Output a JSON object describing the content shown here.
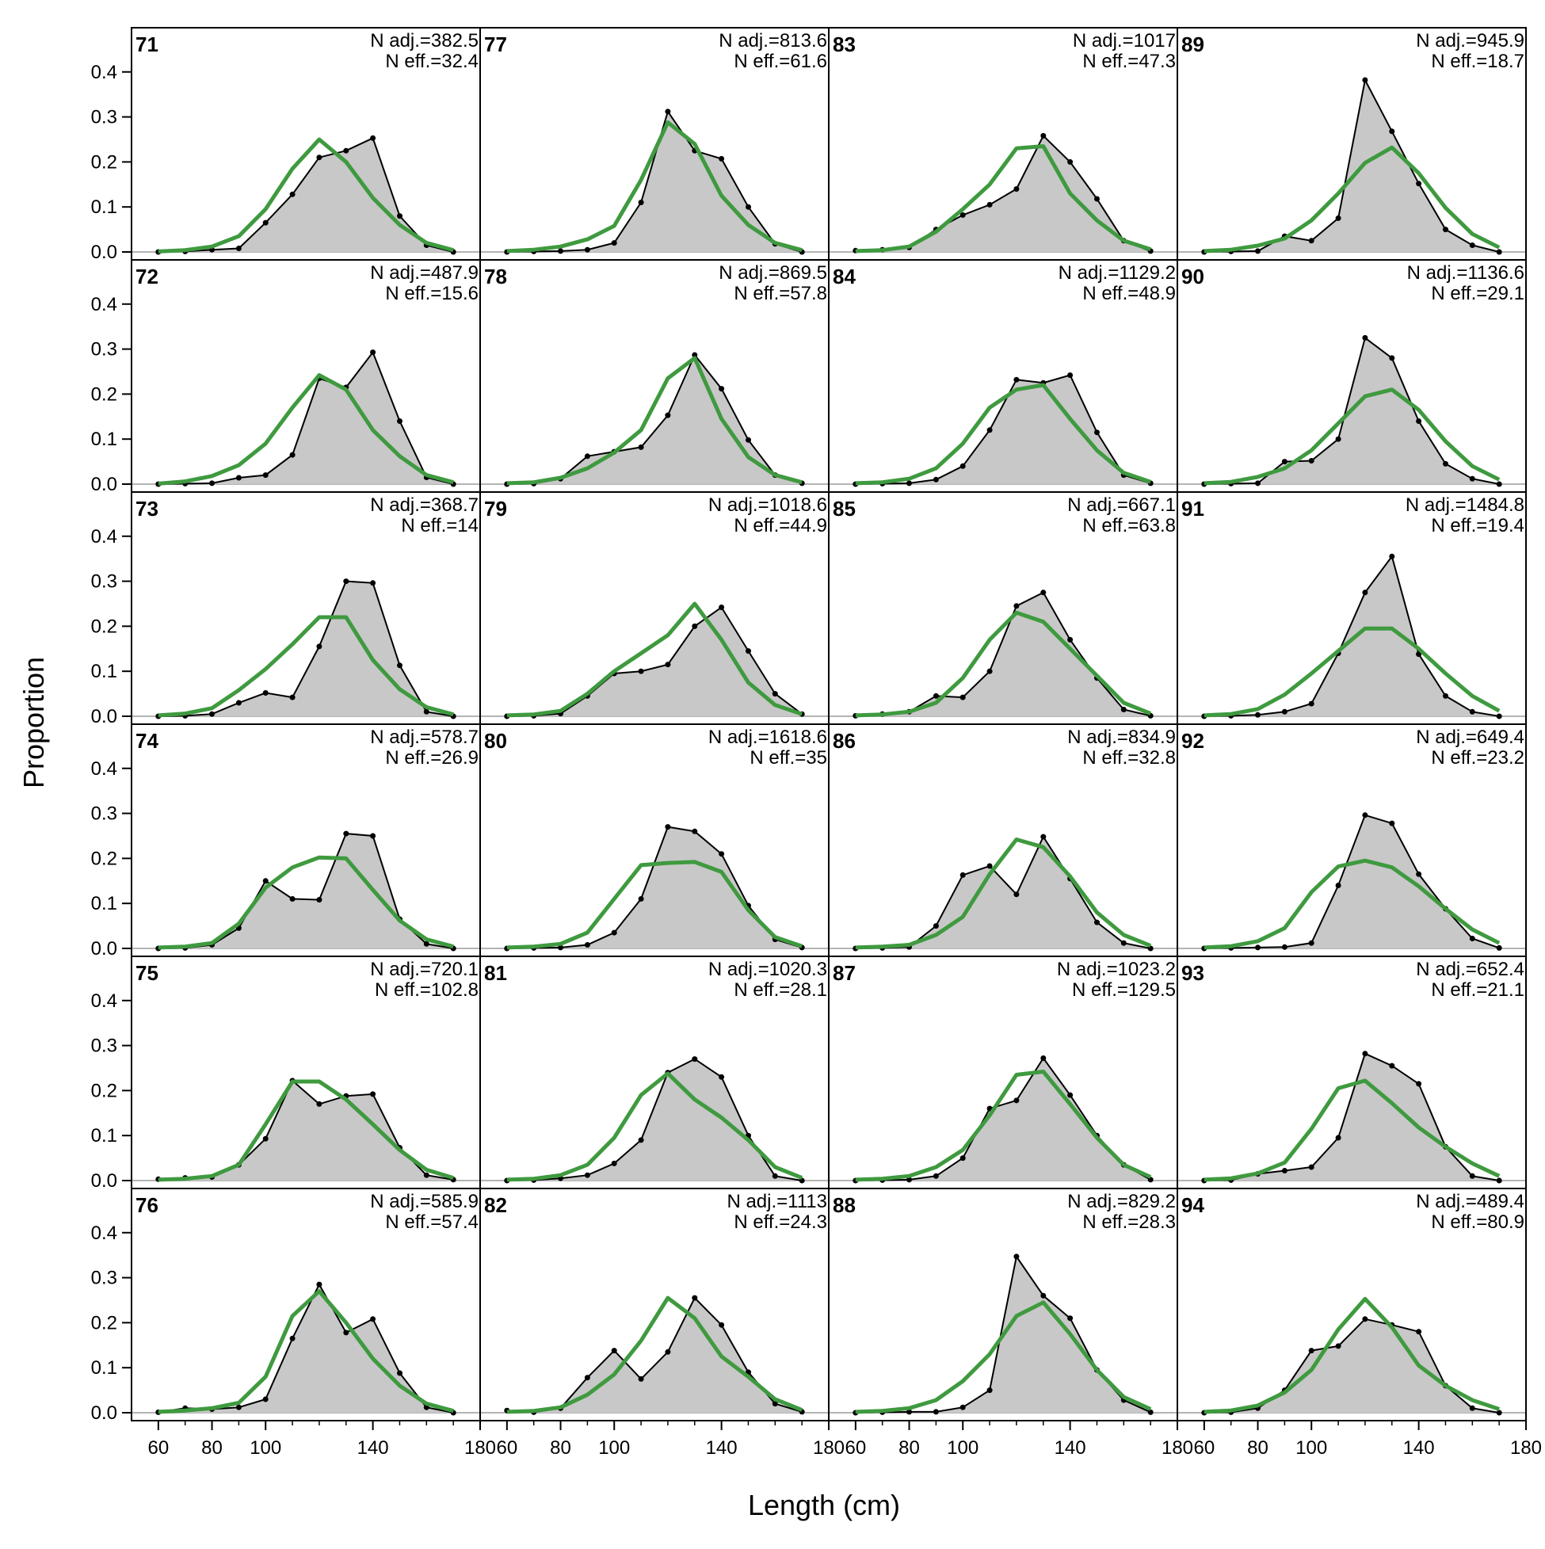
{
  "figure": {
    "xlabel": "Length (cm)",
    "ylabel": "Proportion"
  },
  "chart_data": {
    "type": "line",
    "layout": {
      "rows": 6,
      "cols": 4,
      "order": "column-major"
    },
    "xlabel": "Length (cm)",
    "ylabel": "Proportion",
    "xlim": [
      50,
      180
    ],
    "ylim": [
      0,
      0.47
    ],
    "x_ticks": [
      60,
      80,
      100,
      140,
      180
    ],
    "x_tick_labels": [
      "60",
      "80",
      "100",
      "140",
      "180"
    ],
    "y_ticks": [
      0,
      0.1,
      0.2,
      0.3,
      0.4
    ],
    "y_tick_labels": [
      "0.0",
      "0.1",
      "0.2",
      "0.3",
      "0.4"
    ],
    "x": [
      60,
      70,
      80,
      90,
      100,
      110,
      120,
      130,
      140,
      150,
      160,
      170
    ],
    "colors": {
      "observed_fill": "#c8c8c8",
      "observed_line": "#000000",
      "expected_line": "#3f9a3f",
      "zero_line": "#b4b4b4"
    },
    "panels": [
      {
        "label": "71",
        "n_adj": "N adj.=382.5",
        "n_eff": "N eff.=32.4",
        "observed": [
          0,
          0.001,
          0.005,
          0.008,
          0.065,
          0.128,
          0.21,
          0.225,
          0.253,
          0.08,
          0.015,
          0
        ],
        "expected": [
          0.001,
          0.004,
          0.012,
          0.035,
          0.095,
          0.185,
          0.25,
          0.2,
          0.12,
          0.06,
          0.02,
          0.004
        ]
      },
      {
        "label": "72",
        "n_adj": "N adj.=487.9",
        "n_eff": "N eff.=15.6",
        "observed": [
          0,
          0.001,
          0.002,
          0.014,
          0.02,
          0.065,
          0.235,
          0.215,
          0.293,
          0.14,
          0.015,
          0
        ],
        "expected": [
          0.001,
          0.006,
          0.018,
          0.042,
          0.09,
          0.17,
          0.242,
          0.21,
          0.12,
          0.062,
          0.02,
          0.004
        ]
      },
      {
        "label": "73",
        "n_adj": "N adj.=368.7",
        "n_eff": "N eff.=14",
        "observed": [
          0,
          0.001,
          0.005,
          0.03,
          0.052,
          0.042,
          0.155,
          0.3,
          0.296,
          0.113,
          0.01,
          0
        ],
        "expected": [
          0.002,
          0.006,
          0.018,
          0.058,
          0.105,
          0.16,
          0.22,
          0.22,
          0.125,
          0.06,
          0.02,
          0.004
        ]
      },
      {
        "label": "74",
        "n_adj": "N adj.=578.7",
        "n_eff": "N eff.=26.9",
        "observed": [
          0,
          0.001,
          0.008,
          0.045,
          0.15,
          0.11,
          0.108,
          0.255,
          0.25,
          0.065,
          0.01,
          0
        ],
        "expected": [
          0.002,
          0.004,
          0.012,
          0.055,
          0.135,
          0.18,
          0.202,
          0.2,
          0.13,
          0.062,
          0.02,
          0.004
        ]
      },
      {
        "label": "75",
        "n_adj": "N adj.=720.1",
        "n_eff": "N eff.=102.8",
        "observed": [
          0.003,
          0.006,
          0.008,
          0.035,
          0.093,
          0.222,
          0.17,
          0.188,
          0.192,
          0.073,
          0.012,
          0.002
        ],
        "expected": [
          0.002,
          0.004,
          0.01,
          0.035,
          0.125,
          0.22,
          0.22,
          0.18,
          0.125,
          0.068,
          0.024,
          0.006
        ]
      },
      {
        "label": "76",
        "n_adj": "N adj.=585.9",
        "n_eff": "N eff.=57.4",
        "observed": [
          0.001,
          0.01,
          0.008,
          0.012,
          0.03,
          0.165,
          0.285,
          0.178,
          0.208,
          0.088,
          0.012,
          0
        ],
        "expected": [
          0.002,
          0.005,
          0.01,
          0.022,
          0.08,
          0.215,
          0.27,
          0.2,
          0.12,
          0.06,
          0.02,
          0.004
        ]
      },
      {
        "label": "77",
        "n_adj": "N adj.=813.6",
        "n_eff": "N eff.=61.6",
        "observed": [
          0,
          0.001,
          0.002,
          0.005,
          0.02,
          0.11,
          0.312,
          0.225,
          0.207,
          0.1,
          0.018,
          0
        ],
        "expected": [
          0.002,
          0.005,
          0.012,
          0.028,
          0.058,
          0.16,
          0.288,
          0.24,
          0.125,
          0.06,
          0.02,
          0.004
        ]
      },
      {
        "label": "78",
        "n_adj": "N adj.=869.5",
        "n_eff": "N eff.=57.8",
        "observed": [
          0,
          0.001,
          0.012,
          0.062,
          0.072,
          0.082,
          0.153,
          0.287,
          0.212,
          0.098,
          0.02,
          0.002
        ],
        "expected": [
          0.002,
          0.004,
          0.014,
          0.035,
          0.07,
          0.12,
          0.235,
          0.28,
          0.145,
          0.06,
          0.02,
          0.004
        ]
      },
      {
        "label": "79",
        "n_adj": "N adj.=1018.6",
        "n_eff": "N eff.=44.9",
        "observed": [
          0,
          0.001,
          0.006,
          0.045,
          0.095,
          0.1,
          0.115,
          0.2,
          0.242,
          0.145,
          0.05,
          0.005
        ],
        "expected": [
          0.002,
          0.004,
          0.012,
          0.05,
          0.1,
          0.14,
          0.18,
          0.25,
          0.17,
          0.075,
          0.025,
          0.005
        ]
      },
      {
        "label": "80",
        "n_adj": "N adj.=1618.6",
        "n_eff": "N eff.=35",
        "observed": [
          0,
          0.001,
          0.002,
          0.008,
          0.035,
          0.11,
          0.27,
          0.26,
          0.21,
          0.095,
          0.02,
          0.002
        ],
        "expected": [
          0.002,
          0.004,
          0.01,
          0.035,
          0.11,
          0.185,
          0.19,
          0.192,
          0.17,
          0.085,
          0.025,
          0.005
        ]
      },
      {
        "label": "81",
        "n_adj": "N adj.=1020.3",
        "n_eff": "N eff.=28.1",
        "observed": [
          0,
          0.001,
          0.005,
          0.012,
          0.038,
          0.09,
          0.24,
          0.27,
          0.23,
          0.1,
          0.01,
          0
        ],
        "expected": [
          0.002,
          0.004,
          0.012,
          0.035,
          0.095,
          0.19,
          0.238,
          0.18,
          0.14,
          0.09,
          0.03,
          0.006
        ]
      },
      {
        "label": "82",
        "n_adj": "N adj.=1113",
        "n_eff": "N eff.=24.3",
        "observed": [
          0.005,
          0.001,
          0.01,
          0.078,
          0.138,
          0.075,
          0.135,
          0.255,
          0.195,
          0.09,
          0.02,
          0.002
        ],
        "expected": [
          0.002,
          0.004,
          0.012,
          0.04,
          0.085,
          0.16,
          0.255,
          0.21,
          0.125,
          0.08,
          0.03,
          0.006
        ]
      },
      {
        "label": "83",
        "n_adj": "N adj.=1017",
        "n_eff": "N eff.=47.3",
        "observed": [
          0.003,
          0.005,
          0.01,
          0.05,
          0.082,
          0.105,
          0.14,
          0.258,
          0.2,
          0.118,
          0.025,
          0.002
        ],
        "expected": [
          0.002,
          0.004,
          0.012,
          0.045,
          0.095,
          0.15,
          0.23,
          0.235,
          0.13,
          0.07,
          0.025,
          0.006
        ]
      },
      {
        "label": "84",
        "n_adj": "N adj.=1129.2",
        "n_eff": "N eff.=48.9",
        "observed": [
          0,
          0.001,
          0.002,
          0.01,
          0.04,
          0.12,
          0.232,
          0.225,
          0.242,
          0.115,
          0.02,
          0.002
        ],
        "expected": [
          0.002,
          0.004,
          0.012,
          0.035,
          0.09,
          0.17,
          0.21,
          0.22,
          0.145,
          0.075,
          0.025,
          0.005
        ]
      },
      {
        "label": "85",
        "n_adj": "N adj.=667.1",
        "n_eff": "N eff.=63.8",
        "observed": [
          0.001,
          0.005,
          0.01,
          0.045,
          0.042,
          0.1,
          0.245,
          0.275,
          0.17,
          0.085,
          0.015,
          0.001
        ],
        "expected": [
          0.002,
          0.004,
          0.01,
          0.03,
          0.085,
          0.17,
          0.23,
          0.21,
          0.15,
          0.09,
          0.03,
          0.006
        ]
      },
      {
        "label": "86",
        "n_adj": "N adj.=834.9",
        "n_eff": "N eff.=32.8",
        "observed": [
          0,
          0.001,
          0.003,
          0.05,
          0.163,
          0.183,
          0.12,
          0.248,
          0.155,
          0.058,
          0.012,
          0
        ],
        "expected": [
          0.002,
          0.004,
          0.008,
          0.03,
          0.07,
          0.165,
          0.242,
          0.225,
          0.16,
          0.08,
          0.03,
          0.006
        ]
      },
      {
        "label": "87",
        "n_adj": "N adj.=1023.2",
        "n_eff": "N eff.=129.5",
        "observed": [
          0,
          0.001,
          0.002,
          0.01,
          0.05,
          0.16,
          0.178,
          0.272,
          0.19,
          0.1,
          0.035,
          0.002
        ],
        "expected": [
          0.002,
          0.004,
          0.01,
          0.03,
          0.068,
          0.145,
          0.235,
          0.242,
          0.17,
          0.095,
          0.035,
          0.008
        ]
      },
      {
        "label": "88",
        "n_adj": "N adj.=829.2",
        "n_eff": "N eff.=28.3",
        "observed": [
          0,
          0.001,
          0.002,
          0.002,
          0.012,
          0.05,
          0.347,
          0.26,
          0.21,
          0.095,
          0.028,
          0.001
        ],
        "expected": [
          0.002,
          0.004,
          0.01,
          0.028,
          0.07,
          0.13,
          0.215,
          0.245,
          0.175,
          0.095,
          0.035,
          0.008
        ]
      },
      {
        "label": "89",
        "n_adj": "N adj.=945.9",
        "n_eff": "N eff.=18.7",
        "observed": [
          0,
          0.001,
          0.002,
          0.035,
          0.025,
          0.075,
          0.382,
          0.268,
          0.152,
          0.05,
          0.015,
          0
        ],
        "expected": [
          0.002,
          0.005,
          0.014,
          0.03,
          0.07,
          0.13,
          0.198,
          0.232,
          0.175,
          0.098,
          0.04,
          0.01
        ]
      },
      {
        "label": "90",
        "n_adj": "N adj.=1136.6",
        "n_eff": "N eff.=29.1",
        "observed": [
          0,
          0.001,
          0.002,
          0.05,
          0.052,
          0.1,
          0.325,
          0.28,
          0.14,
          0.045,
          0.012,
          0
        ],
        "expected": [
          0.002,
          0.005,
          0.016,
          0.035,
          0.075,
          0.135,
          0.195,
          0.21,
          0.165,
          0.095,
          0.04,
          0.01
        ]
      },
      {
        "label": "91",
        "n_adj": "N adj.=1484.8",
        "n_eff": "N eff.=19.4",
        "observed": [
          0,
          0.001,
          0.003,
          0.01,
          0.028,
          0.14,
          0.275,
          0.355,
          0.138,
          0.045,
          0.01,
          0
        ],
        "expected": [
          0.002,
          0.005,
          0.016,
          0.048,
          0.095,
          0.145,
          0.195,
          0.195,
          0.15,
          0.095,
          0.045,
          0.012
        ]
      },
      {
        "label": "92",
        "n_adj": "N adj.=649.4",
        "n_eff": "N eff.=23.2",
        "observed": [
          0,
          0.001,
          0.002,
          0.003,
          0.012,
          0.14,
          0.296,
          0.278,
          0.165,
          0.088,
          0.022,
          0.001
        ],
        "expected": [
          0.002,
          0.005,
          0.016,
          0.045,
          0.125,
          0.182,
          0.195,
          0.18,
          0.138,
          0.088,
          0.042,
          0.012
        ]
      },
      {
        "label": "93",
        "n_adj": "N adj.=652.4",
        "n_eff": "N eff.=21.1",
        "observed": [
          0,
          0.001,
          0.015,
          0.022,
          0.03,
          0.095,
          0.282,
          0.255,
          0.215,
          0.075,
          0.01,
          0
        ],
        "expected": [
          0.002,
          0.005,
          0.016,
          0.04,
          0.115,
          0.205,
          0.222,
          0.172,
          0.118,
          0.075,
          0.038,
          0.01
        ]
      },
      {
        "label": "94",
        "n_adj": "N adj.=489.4",
        "n_eff": "N eff.=80.9",
        "observed": [
          0,
          0.001,
          0.01,
          0.05,
          0.138,
          0.148,
          0.208,
          0.195,
          0.18,
          0.06,
          0.01,
          0
        ],
        "expected": [
          0.002,
          0.005,
          0.016,
          0.045,
          0.095,
          0.185,
          0.253,
          0.19,
          0.105,
          0.06,
          0.028,
          0.008
        ]
      }
    ]
  }
}
